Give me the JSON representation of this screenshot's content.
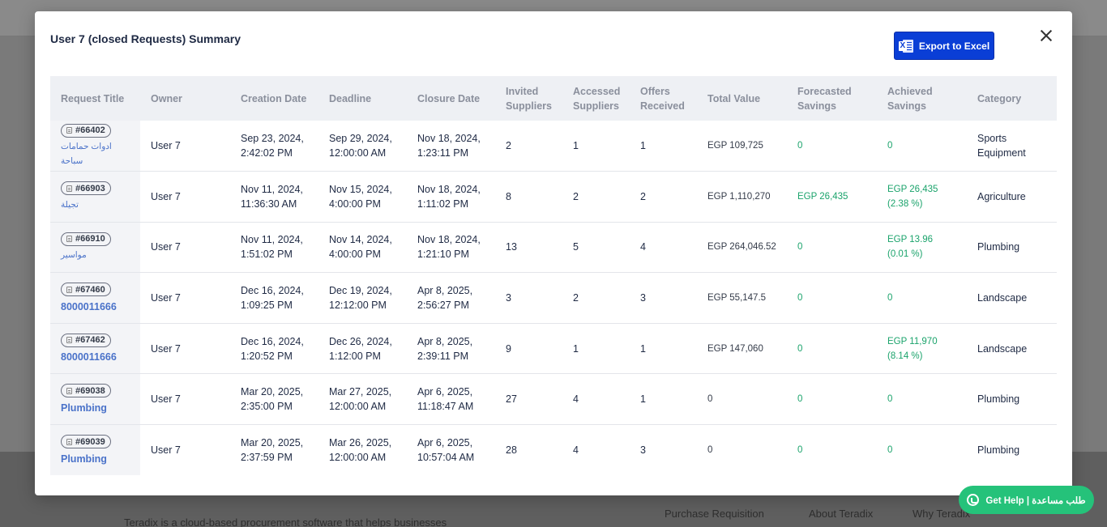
{
  "background": {
    "footer_text": "Teradix is a cloud-based procurement software that helps businesses",
    "footer_links": [
      "Purchase Requisition",
      "About Teradix",
      "Why Teradix"
    ]
  },
  "modal": {
    "title": "User 7 (closed Requests) Summary",
    "export_label": "Export to Excel",
    "close_icon": "close-icon"
  },
  "table": {
    "columns": [
      "Request Title",
      "Owner",
      "Creation Date",
      "Deadline",
      "Closure Date",
      "Invited Suppliers",
      "Accessed Suppliers",
      "Offers Received",
      "Total Value",
      "Forecasted Savings",
      "Achieved Savings",
      "Category"
    ],
    "rows": [
      {
        "id": "#66402",
        "name": "ادوات حمامات سباحة",
        "owner": "User 7",
        "created": "Sep 23, 2024, 2:42:02 PM",
        "deadline": "Sep 29, 2024, 12:00:00 AM",
        "closure": "Nov 18, 2024, 1:23:11 PM",
        "invited": "2",
        "accessed": "1",
        "offers": "1",
        "total": "EGP 109,725",
        "forecasted": "0",
        "achieved": "0",
        "category": "Sports Equipment"
      },
      {
        "id": "#66903",
        "name": "تجيلة",
        "owner": "User 7",
        "created": "Nov 11, 2024, 11:36:30 AM",
        "deadline": "Nov 15, 2024, 4:00:00 PM",
        "closure": "Nov 18, 2024, 1:11:02 PM",
        "invited": "8",
        "accessed": "2",
        "offers": "2",
        "total": "EGP 1,110,270",
        "forecasted": "EGP 26,435",
        "achieved": "EGP 26,435 (2.38 %)",
        "category": "Agriculture"
      },
      {
        "id": "#66910",
        "name": "مواسير",
        "owner": "User 7",
        "created": "Nov 11, 2024, 1:51:02 PM",
        "deadline": "Nov 14, 2024, 4:00:00 PM",
        "closure": "Nov 18, 2024, 1:21:10 PM",
        "invited": "13",
        "accessed": "5",
        "offers": "4",
        "total": "EGP 264,046.52",
        "forecasted": "0",
        "achieved": "EGP 13.96 (0.01 %)",
        "category": "Plumbing"
      },
      {
        "id": "#67460",
        "name": "8000011666",
        "owner": "User 7",
        "created": "Dec 16, 2024, 1:09:25 PM",
        "deadline": "Dec 19, 2024, 12:12:00 PM",
        "closure": "Apr 8, 2025, 2:56:27 PM",
        "invited": "3",
        "accessed": "2",
        "offers": "3",
        "total": "EGP 55,147.5",
        "forecasted": "0",
        "achieved": "0",
        "category": "Landscape"
      },
      {
        "id": "#67462",
        "name": "8000011666",
        "owner": "User 7",
        "created": "Dec 16, 2024, 1:20:52 PM",
        "deadline": "Dec 26, 2024, 1:12:00 PM",
        "closure": "Apr 8, 2025, 2:39:11 PM",
        "invited": "9",
        "accessed": "1",
        "offers": "1",
        "total": "EGP 147,060",
        "forecasted": "0",
        "achieved": "EGP 11,970 (8.14 %)",
        "category": "Landscape"
      },
      {
        "id": "#69038",
        "name": "Plumbing",
        "owner": "User 7",
        "created": "Mar 20, 2025, 2:35:00 PM",
        "deadline": "Mar 27, 2025, 12:00:00 AM",
        "closure": "Apr 6, 2025, 11:18:47 AM",
        "invited": "27",
        "accessed": "4",
        "offers": "1",
        "total": "0",
        "forecasted": "0",
        "achieved": "0",
        "category": "Plumbing"
      },
      {
        "id": "#69039",
        "name": "Plumbing",
        "owner": "User 7",
        "created": "Mar 20, 2025, 2:37:59 PM",
        "deadline": "Mar 26, 2025, 12:00:00 AM",
        "closure": "Apr 6, 2025, 10:57:04 AM",
        "invited": "28",
        "accessed": "4",
        "offers": "3",
        "total": "0",
        "forecasted": "0",
        "achieved": "0",
        "category": "Plumbing"
      }
    ]
  },
  "help": {
    "label": "Get Help | طلب مساعدة",
    "icon": "whatsapp-icon"
  },
  "colors": {
    "accent": "#0a3ed6",
    "savings_green": "#1aa36b",
    "link_blue": "#4a72c9",
    "help_green": "#25c27a"
  }
}
